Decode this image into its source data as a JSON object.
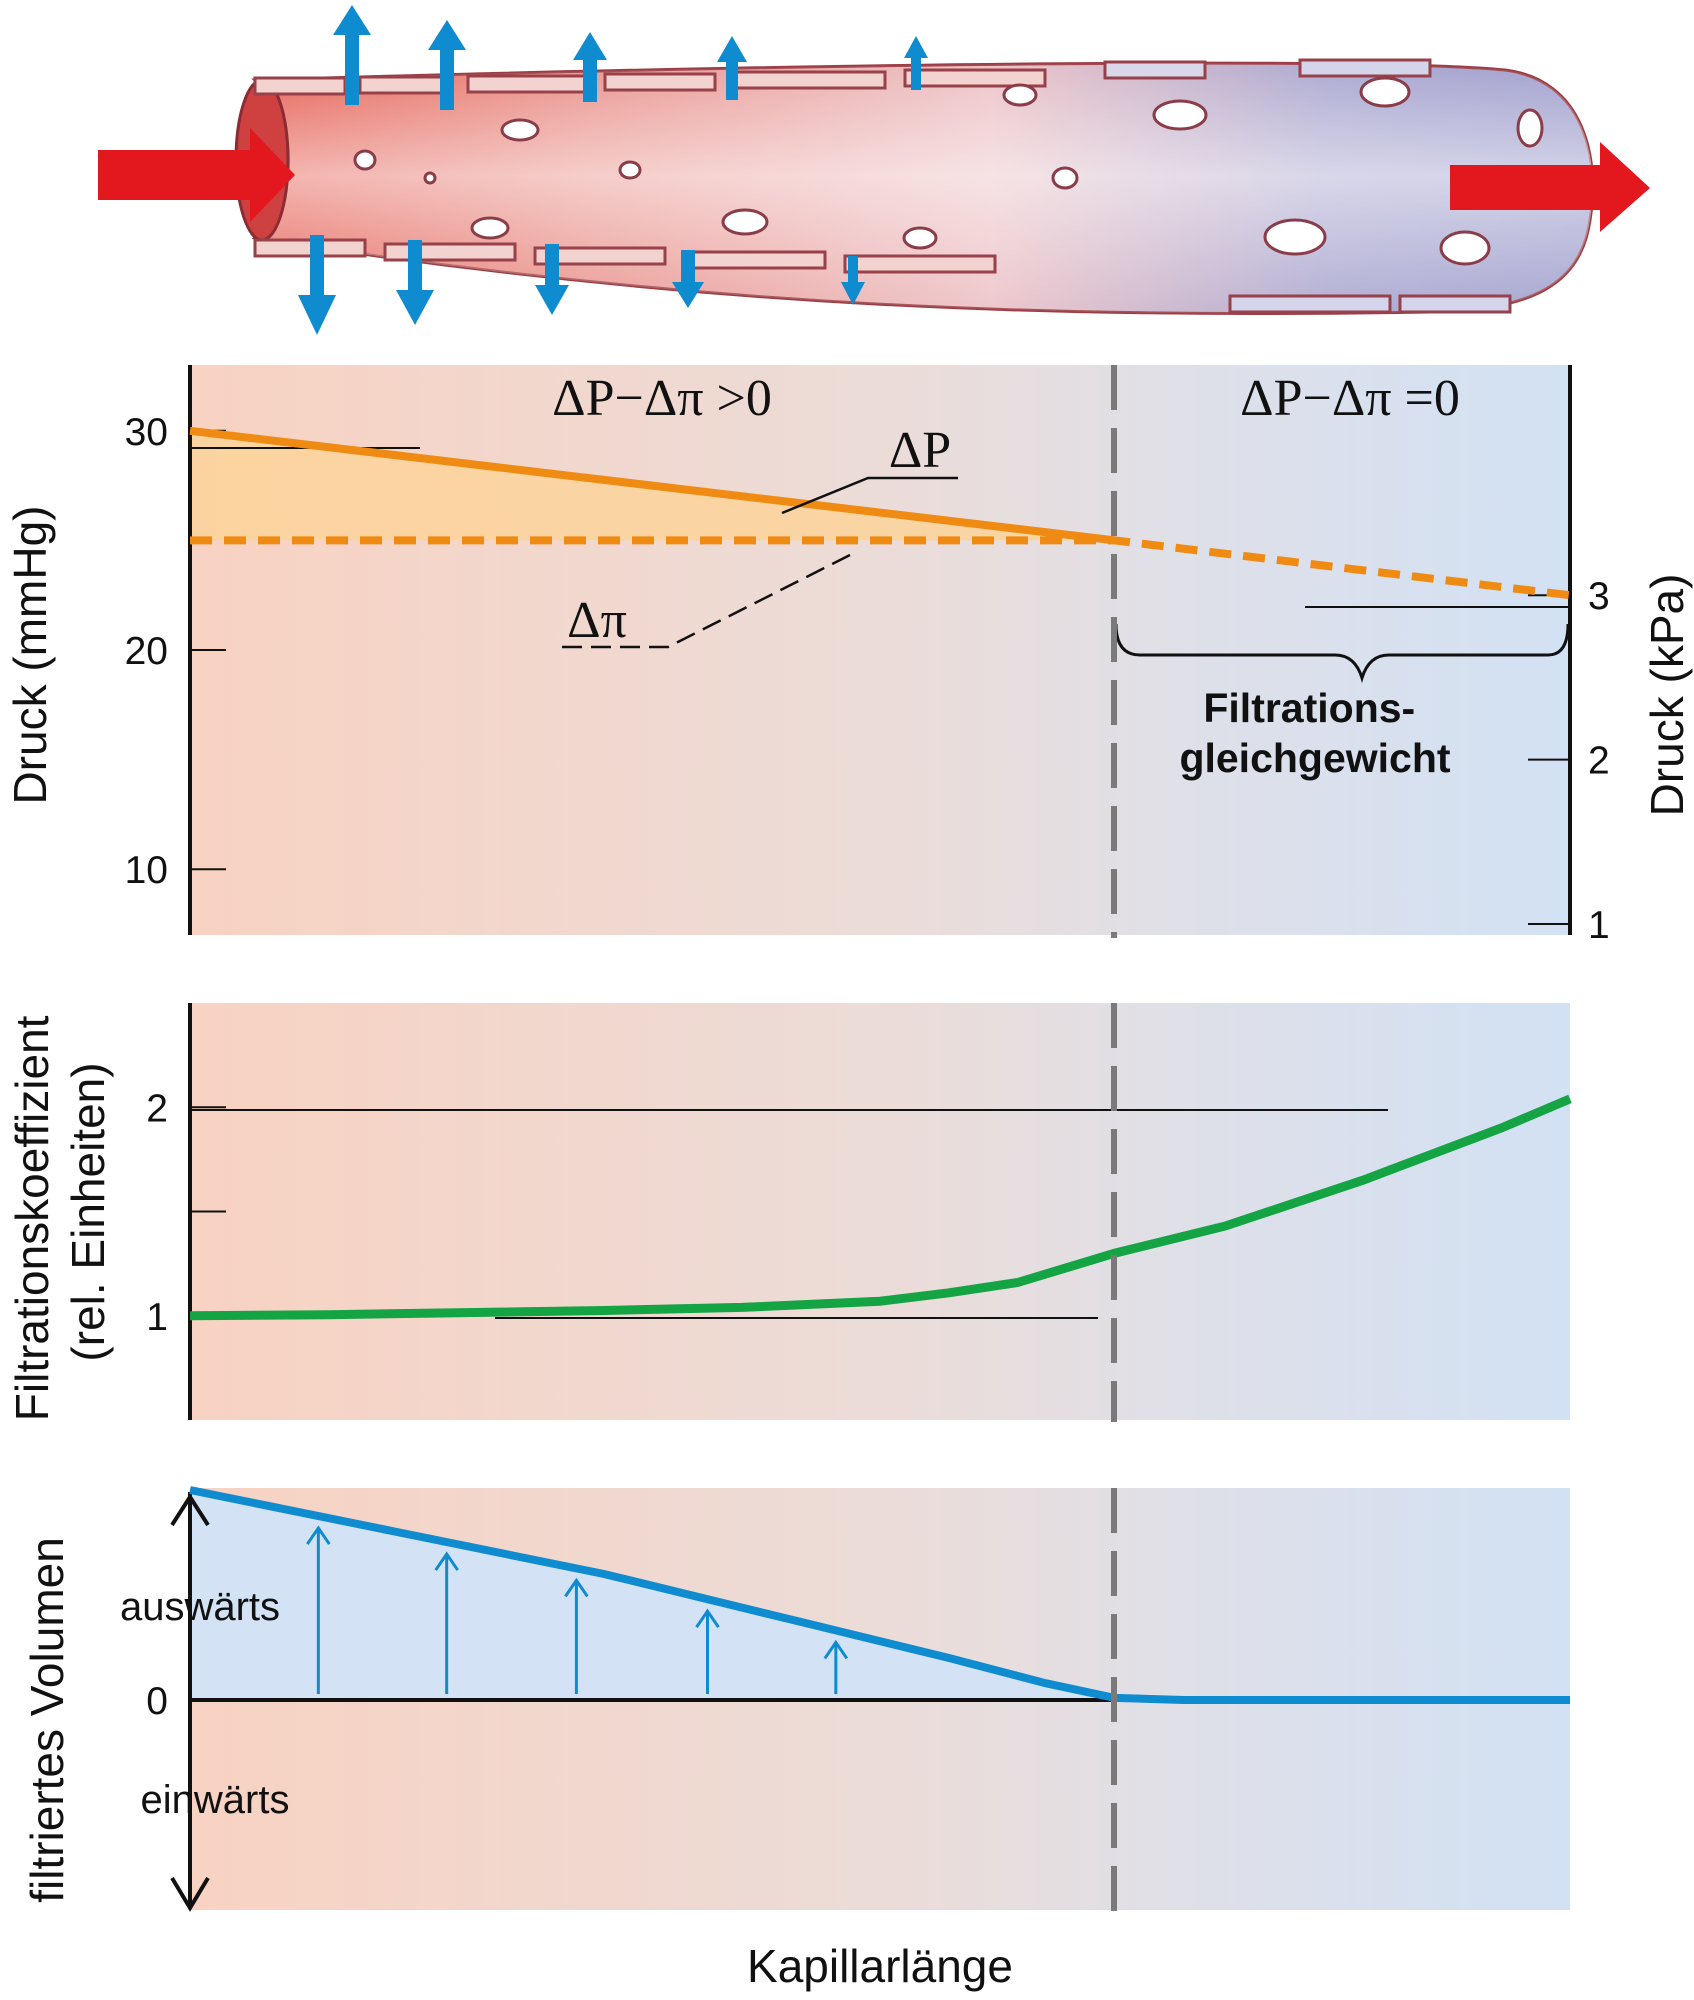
{
  "colors": {
    "arterial_red": "#e3171e",
    "filtration_blue": "#0f8bd0",
    "pressure_orange": "#ef8a12",
    "coefficient_green": "#14a443",
    "divider_gray": "#7a7a7a",
    "panel_left_tint": "#f7d3c3",
    "panel_right_tint": "#d3e2f4"
  },
  "header": {
    "illustration_icon": "capillary-with-filtration-arrows-icon"
  },
  "chart_data": [
    {
      "type": "line",
      "panel": "pressure",
      "ylabel_left": "Druck (mmHg)",
      "ylabel_right": "Druck (kPa)",
      "yticks_left": [
        "30",
        "20",
        "10"
      ],
      "yticks_right": [
        "3",
        "2",
        "1"
      ],
      "left_region_label": "ΔP−Δπ >0",
      "right_region_label": "ΔP−Δπ =0",
      "series": [
        {
          "name": "ΔP",
          "x": [
            0,
            0.67,
            1
          ],
          "y": [
            30,
            25,
            22.5
          ]
        },
        {
          "name": "Δπ",
          "x": [
            0,
            0.67,
            1
          ],
          "y": [
            25,
            25,
            22.5
          ]
        }
      ],
      "annotation": "Filtrations-\ngleichgewicht",
      "annotation_lines": [
        "Filtrations-",
        "gleichgewicht"
      ],
      "ylim": [
        7,
        33
      ],
      "kpa_to_mmhg": 7.5
    },
    {
      "type": "line",
      "panel": "coefficient",
      "ylabel": "Filtrationskoeffizient\n(rel. Einheiten)",
      "ylabel_lines": [
        "Filtrationskoeffizient",
        "(rel. Einheiten)"
      ],
      "yticks": [
        "2",
        "1"
      ],
      "series": [
        {
          "x": [
            0,
            0.1,
            0.2,
            0.3,
            0.4,
            0.5,
            0.55,
            0.6,
            0.67,
            0.75,
            0.85,
            0.95,
            1
          ],
          "y": [
            1,
            1.005,
            1.015,
            1.025,
            1.04,
            1.07,
            1.11,
            1.16,
            1.3,
            1.43,
            1.65,
            1.9,
            2.04
          ]
        }
      ],
      "ylim": [
        0.5,
        2.5
      ]
    },
    {
      "type": "area",
      "panel": "filtered_volume",
      "ylabel": "filtriertes Volumen",
      "yticks": [
        "0"
      ],
      "outward_label": "auswärts",
      "inward_label": "einwärts",
      "xlabel": "Kapillarlänge",
      "series": [
        {
          "x": [
            0,
            0.15,
            0.3,
            0.45,
            0.55,
            0.62,
            0.67,
            0.72,
            0.8,
            1
          ],
          "y": [
            1,
            0.8,
            0.6,
            0.36,
            0.2,
            0.08,
            0.01,
            0,
            0,
            0
          ]
        }
      ],
      "ylim": [
        -1,
        1
      ]
    }
  ]
}
